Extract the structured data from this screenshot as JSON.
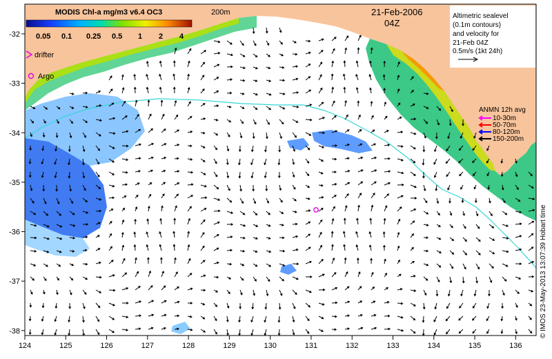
{
  "colorbar": {
    "title": "MODIS Chl-a mg/m3 v6.4 OC3",
    "ticks": [
      "0.05",
      "0.1",
      "0.25",
      "0.5",
      "1",
      "2",
      "4"
    ]
  },
  "map": {
    "date": "21-Feb-2006",
    "time": "04Z",
    "isobath_label": "200m",
    "credit": "© IMOS 23-May-2013 13:07:39 Hobart time",
    "colors": {
      "land": "#f8c49c",
      "ocean": "#ffffff",
      "isobath": "#35d6d6",
      "argo": "#e600e6",
      "drifter": "#e600e6"
    }
  },
  "legend": {
    "drifter_label": "drifter",
    "argo_label": "Argo",
    "altimetry": [
      "Altimetric sealevel",
      "(0.1m contours)",
      "and velocity for",
      "21-Feb 04Z",
      "0.5m/s (1kt 24h)"
    ],
    "anmn_title": "ANMN 12h avg",
    "anmn_items": [
      {
        "label": "10-30m",
        "color": "#ff00ff"
      },
      {
        "label": "50-70m",
        "color": "#ff0000"
      },
      {
        "label": "80-120m",
        "color": "#0000ff"
      },
      {
        "label": "150-200m",
        "color": "#000000"
      }
    ]
  },
  "axes": {
    "x_ticks": [
      "124",
      "125",
      "126",
      "127",
      "128",
      "129",
      "130",
      "131",
      "132",
      "133",
      "134",
      "135",
      "136"
    ],
    "y_ticks": [
      "-32",
      "-33",
      "-34",
      "-35",
      "-36",
      "-37",
      "-38"
    ],
    "lon_range": [
      124,
      136.5
    ],
    "lat_range": [
      -38.1,
      -31.4
    ]
  }
}
